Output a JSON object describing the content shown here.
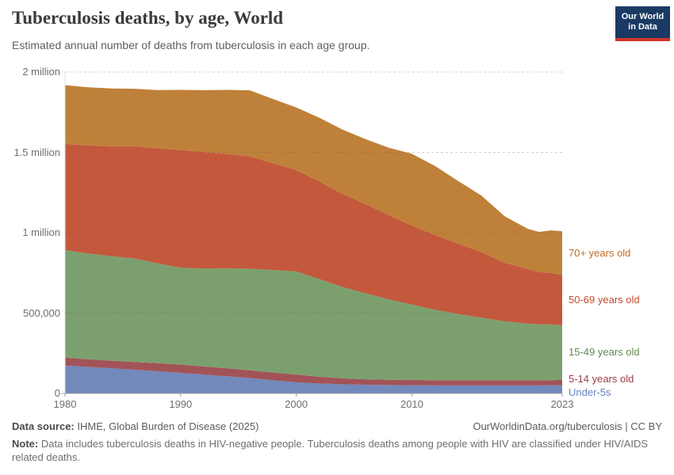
{
  "header": {
    "title": "Tuberculosis deaths, by age, World",
    "subtitle": "Estimated annual number of deaths from tuberculosis in each age group.",
    "logo": {
      "line1": "Our World",
      "line2": "in Data"
    }
  },
  "chart_data": {
    "type": "area",
    "stacked": true,
    "title": "Tuberculosis deaths, by age, World",
    "xlabel": "",
    "ylabel": "",
    "units": "deaths per year",
    "grid": "horizontal-dashed",
    "legend_position": "right-inline-labels",
    "ylim": [
      0,
      2000000
    ],
    "x": [
      1980,
      1982,
      1984,
      1986,
      1988,
      1990,
      1992,
      1994,
      1996,
      1998,
      2000,
      2002,
      2004,
      2006,
      2008,
      2010,
      2012,
      2014,
      2016,
      2018,
      2019,
      2020,
      2021,
      2022,
      2023
    ],
    "series": [
      {
        "name": "Under-5s",
        "color": "#7289BB",
        "label_color": "#6584C5",
        "values": [
          174000,
          165000,
          157000,
          148000,
          138000,
          128000,
          117000,
          107000,
          96000,
          82000,
          69000,
          62000,
          57000,
          54000,
          52000,
          51000,
          50000,
          50000,
          50000,
          50000,
          50000,
          50000,
          50000,
          51000,
          51000
        ]
      },
      {
        "name": "5-14 years old",
        "color": "#A25358",
        "label_color": "#9E3D42",
        "values": [
          49000,
          48000,
          47000,
          48000,
          50000,
          52000,
          51000,
          50000,
          48000,
          48000,
          49000,
          42000,
          37000,
          34000,
          33000,
          33000,
          32000,
          32000,
          32000,
          32000,
          32000,
          32000,
          32000,
          32000,
          33000
        ]
      },
      {
        "name": "15-49 years old",
        "color": "#7BA06E",
        "label_color": "#5F8C50",
        "values": [
          669000,
          658000,
          650000,
          644000,
          622000,
          602000,
          610000,
          622000,
          632000,
          638000,
          641000,
          608000,
          568000,
          535000,
          500000,
          469000,
          439000,
          412000,
          390000,
          367000,
          360000,
          353000,
          348000,
          346000,
          341000
        ]
      },
      {
        "name": "50-69 years old",
        "color": "#C4583C",
        "label_color": "#C44D32",
        "values": [
          661000,
          672000,
          684000,
          698000,
          716000,
          733000,
          724000,
          712000,
          700000,
          664000,
          631000,
          606000,
          580000,
          556000,
          524000,
          492000,
          465000,
          438000,
          408000,
          365000,
          352000,
          340000,
          325000,
          321000,
          312000
        ]
      },
      {
        "name": "70+ years old",
        "color": "#BF8139",
        "label_color": "#C06E29",
        "values": [
          365000,
          362000,
          360000,
          358000,
          362000,
          374000,
          385000,
          398000,
          410000,
          400000,
          390000,
          398000,
          400000,
          404000,
          420000,
          446000,
          430000,
          390000,
          352000,
          290000,
          270000,
          250000,
          250000,
          265000,
          273000
        ]
      }
    ],
    "yticks": [
      {
        "value": 0,
        "label": "0"
      },
      {
        "value": 500000,
        "label": "500,000"
      },
      {
        "value": 1000000,
        "label": "1 million"
      },
      {
        "value": 1500000,
        "label": "1.5 million"
      },
      {
        "value": 2000000,
        "label": "2 million"
      }
    ],
    "xticks": [
      {
        "value": 1980,
        "label": "1980"
      },
      {
        "value": 1990,
        "label": "1990"
      },
      {
        "value": 2000,
        "label": "2000"
      },
      {
        "value": 2010,
        "label": "2010"
      },
      {
        "value": 2023,
        "label": "2023"
      }
    ]
  },
  "footer": {
    "data_source_label": "Data source:",
    "data_source_value": "IHME, Global Burden of Disease (2025)",
    "link": "OurWorldinData.org/tuberculosis | CC BY",
    "note_label": "Note:",
    "note_value": "Data includes tuberculosis deaths in HIV-negative people. Tuberculosis deaths among people with HIV are classified under HIV/AIDS related deaths."
  }
}
